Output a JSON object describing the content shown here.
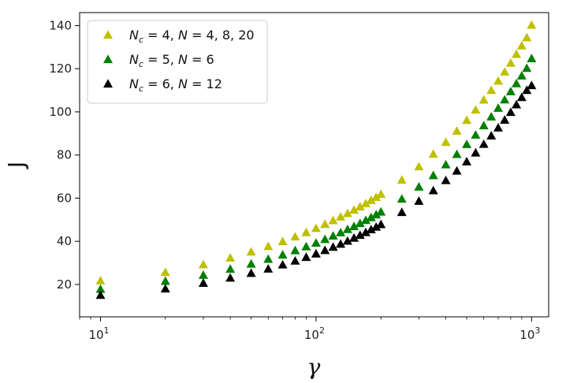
{
  "chart_data": {
    "type": "scatter",
    "xlabel": "γ",
    "ylabel": "J",
    "xscale": "log",
    "xlim": [
      8,
      1200
    ],
    "ylim": [
      5,
      146
    ],
    "grid": false,
    "legend_position": "top-left",
    "x_ticks": [
      {
        "value": 10,
        "base": "10",
        "exp": "1"
      },
      {
        "value": 100,
        "base": "10",
        "exp": "2"
      },
      {
        "value": 1000,
        "base": "10",
        "exp": "3"
      }
    ],
    "y_ticks": [
      20,
      40,
      60,
      80,
      100,
      120,
      140
    ],
    "x": [
      10,
      20,
      30,
      40,
      50,
      60,
      70,
      80,
      90,
      100,
      110,
      120,
      130,
      140,
      150,
      160,
      170,
      180,
      190,
      200,
      250,
      300,
      350,
      400,
      450,
      500,
      550,
      600,
      650,
      700,
      750,
      800,
      850,
      900,
      950,
      1000
    ],
    "series": [
      {
        "name": "N_c = 4, N = 4, 8, 20",
        "legend_parts": [
          "N",
          "c",
          " = 4, ",
          "N",
          " = 4, 8, 20"
        ],
        "color": "#bfbf00",
        "values": [
          21.5,
          25.4,
          29.0,
          32.1,
          34.9,
          37.4,
          39.7,
          41.9,
          43.9,
          45.8,
          47.7,
          49.4,
          51.1,
          52.7,
          54.3,
          55.8,
          57.3,
          58.8,
          60.2,
          61.6,
          68.2,
          74.4,
          80.2,
          85.7,
          90.9,
          95.9,
          100.7,
          105.3,
          109.8,
          114.1,
          118.3,
          122.4,
          126.5,
          130.4,
          134.2,
          140.0
        ]
      },
      {
        "name": "N_c = 5, N = 6",
        "legend_parts": [
          "N",
          "c",
          " = 5, ",
          "N",
          " = 6"
        ],
        "color": "#008000",
        "values": [
          17.6,
          21.3,
          24.1,
          26.9,
          29.3,
          31.5,
          33.5,
          35.5,
          37.3,
          39.0,
          40.7,
          42.3,
          43.8,
          45.3,
          46.7,
          48.1,
          49.5,
          50.8,
          52.1,
          53.4,
          59.4,
          65.0,
          70.3,
          75.3,
          80.1,
          84.7,
          89.1,
          93.4,
          97.5,
          101.5,
          105.4,
          109.2,
          112.9,
          116.5,
          120.0,
          124.5
        ]
      },
      {
        "name": "N_c = 6, N = 12",
        "legend_parts": [
          "N",
          "c",
          " = 6, ",
          "N",
          " = 12"
        ],
        "color": "#000000",
        "values": [
          14.8,
          17.8,
          20.4,
          22.8,
          25.0,
          27.0,
          28.9,
          30.7,
          32.4,
          34.0,
          35.6,
          37.1,
          38.5,
          39.9,
          41.3,
          42.6,
          43.9,
          45.2,
          46.4,
          47.6,
          53.2,
          58.4,
          63.3,
          68.0,
          72.4,
          76.7,
          80.8,
          84.8,
          88.7,
          92.4,
          96.0,
          99.6,
          103.1,
          106.5,
          109.8,
          112.0
        ]
      }
    ]
  }
}
